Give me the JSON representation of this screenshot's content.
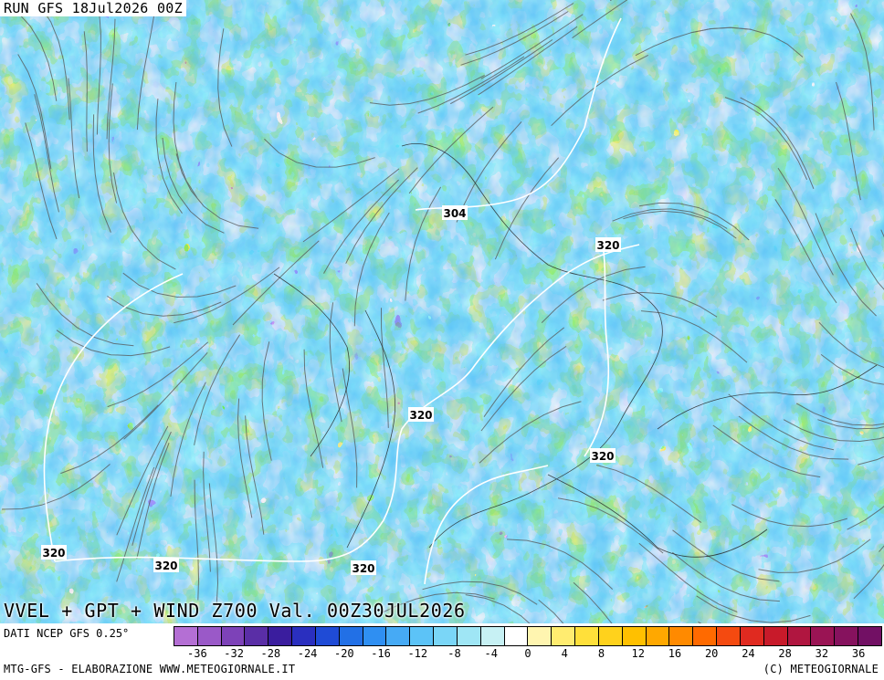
{
  "header": {
    "run_label": "RUN GFS 18Jul2026 00Z"
  },
  "map": {
    "title": "VVEL + GPT + WIND Z700 Val. 00Z30JUL2026",
    "contour_labels": [
      "304",
      "320",
      "320",
      "320",
      "320",
      "320",
      "320"
    ],
    "contour_color": "#ffffff",
    "streamline_color": "#555555"
  },
  "footer": {
    "source": "DATI NCEP GFS 0.25°",
    "credit": "MTG-GFS - ELABORAZIONE WWW.METEOGIORNALE.IT",
    "copyright": "(C) METEOGIORNALE"
  },
  "legend": {
    "colors": [
      "#b46fd4",
      "#9a59c8",
      "#7d42b8",
      "#5a2ea6",
      "#3a1d9e",
      "#2a2fbf",
      "#1f4bd6",
      "#2270e6",
      "#2f8ff2",
      "#46aaf5",
      "#5cc3f7",
      "#7ad6f7",
      "#9fe6f5",
      "#c7f1f4",
      "#ffffff",
      "#fff5b0",
      "#ffec70",
      "#ffe03a",
      "#ffd21c",
      "#ffc000",
      "#ffa800",
      "#ff8a00",
      "#ff6a00",
      "#f44a10",
      "#e02a20",
      "#c81a2a",
      "#b01640",
      "#9a1454",
      "#86125e",
      "#721064"
    ],
    "tick_labels": [
      "-36",
      "-32",
      "-28",
      "-24",
      "-20",
      "-16",
      "-12",
      "-8",
      "-4",
      "0",
      "4",
      "8",
      "12",
      "16",
      "20",
      "24",
      "28",
      "32",
      "36"
    ]
  }
}
